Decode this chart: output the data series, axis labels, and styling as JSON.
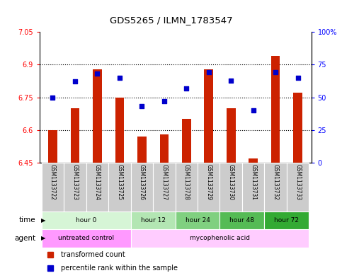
{
  "title": "GDS5265 / ILMN_1783547",
  "samples": [
    "GSM1133722",
    "GSM1133723",
    "GSM1133724",
    "GSM1133725",
    "GSM1133726",
    "GSM1133727",
    "GSM1133728",
    "GSM1133729",
    "GSM1133730",
    "GSM1133731",
    "GSM1133732",
    "GSM1133733"
  ],
  "transformed_count": [
    6.6,
    6.7,
    6.88,
    6.75,
    6.57,
    6.58,
    6.65,
    6.88,
    6.7,
    6.47,
    6.94,
    6.77
  ],
  "percentile_rank": [
    50,
    62,
    68,
    65,
    43,
    47,
    57,
    69,
    63,
    40,
    69,
    65
  ],
  "ylim_left": [
    6.45,
    7.05
  ],
  "ylim_right": [
    0,
    100
  ],
  "yticks_left": [
    6.45,
    6.6,
    6.75,
    6.9,
    7.05
  ],
  "yticks_right": [
    0,
    25,
    50,
    75,
    100
  ],
  "ytick_labels_left": [
    "6.45",
    "6.6",
    "6.75",
    "6.9",
    "7.05"
  ],
  "ytick_labels_right": [
    "0",
    "25",
    "50",
    "75",
    "100%"
  ],
  "hlines": [
    6.6,
    6.75,
    6.9
  ],
  "bar_color": "#cc2200",
  "dot_color": "#0000cc",
  "base_value": 6.45,
  "time_groups": [
    {
      "label": "hour 0",
      "start": 0,
      "end": 4,
      "color": "#d6f5d6"
    },
    {
      "label": "hour 12",
      "start": 4,
      "end": 6,
      "color": "#b3e6b3"
    },
    {
      "label": "hour 24",
      "start": 6,
      "end": 8,
      "color": "#80d080"
    },
    {
      "label": "hour 48",
      "start": 8,
      "end": 10,
      "color": "#55bb55"
    },
    {
      "label": "hour 72",
      "start": 10,
      "end": 12,
      "color": "#33aa33"
    }
  ],
  "agent_groups": [
    {
      "label": "untreated control",
      "start": 0,
      "end": 4,
      "color": "#ff99ff"
    },
    {
      "label": "mycophenolic acid",
      "start": 4,
      "end": 12,
      "color": "#ffccff"
    }
  ],
  "legend_items": [
    {
      "color": "#cc2200",
      "label": "transformed count"
    },
    {
      "color": "#0000cc",
      "label": "percentile rank within the sample"
    }
  ],
  "sample_bg_color": "#cccccc",
  "bar_width": 0.4
}
